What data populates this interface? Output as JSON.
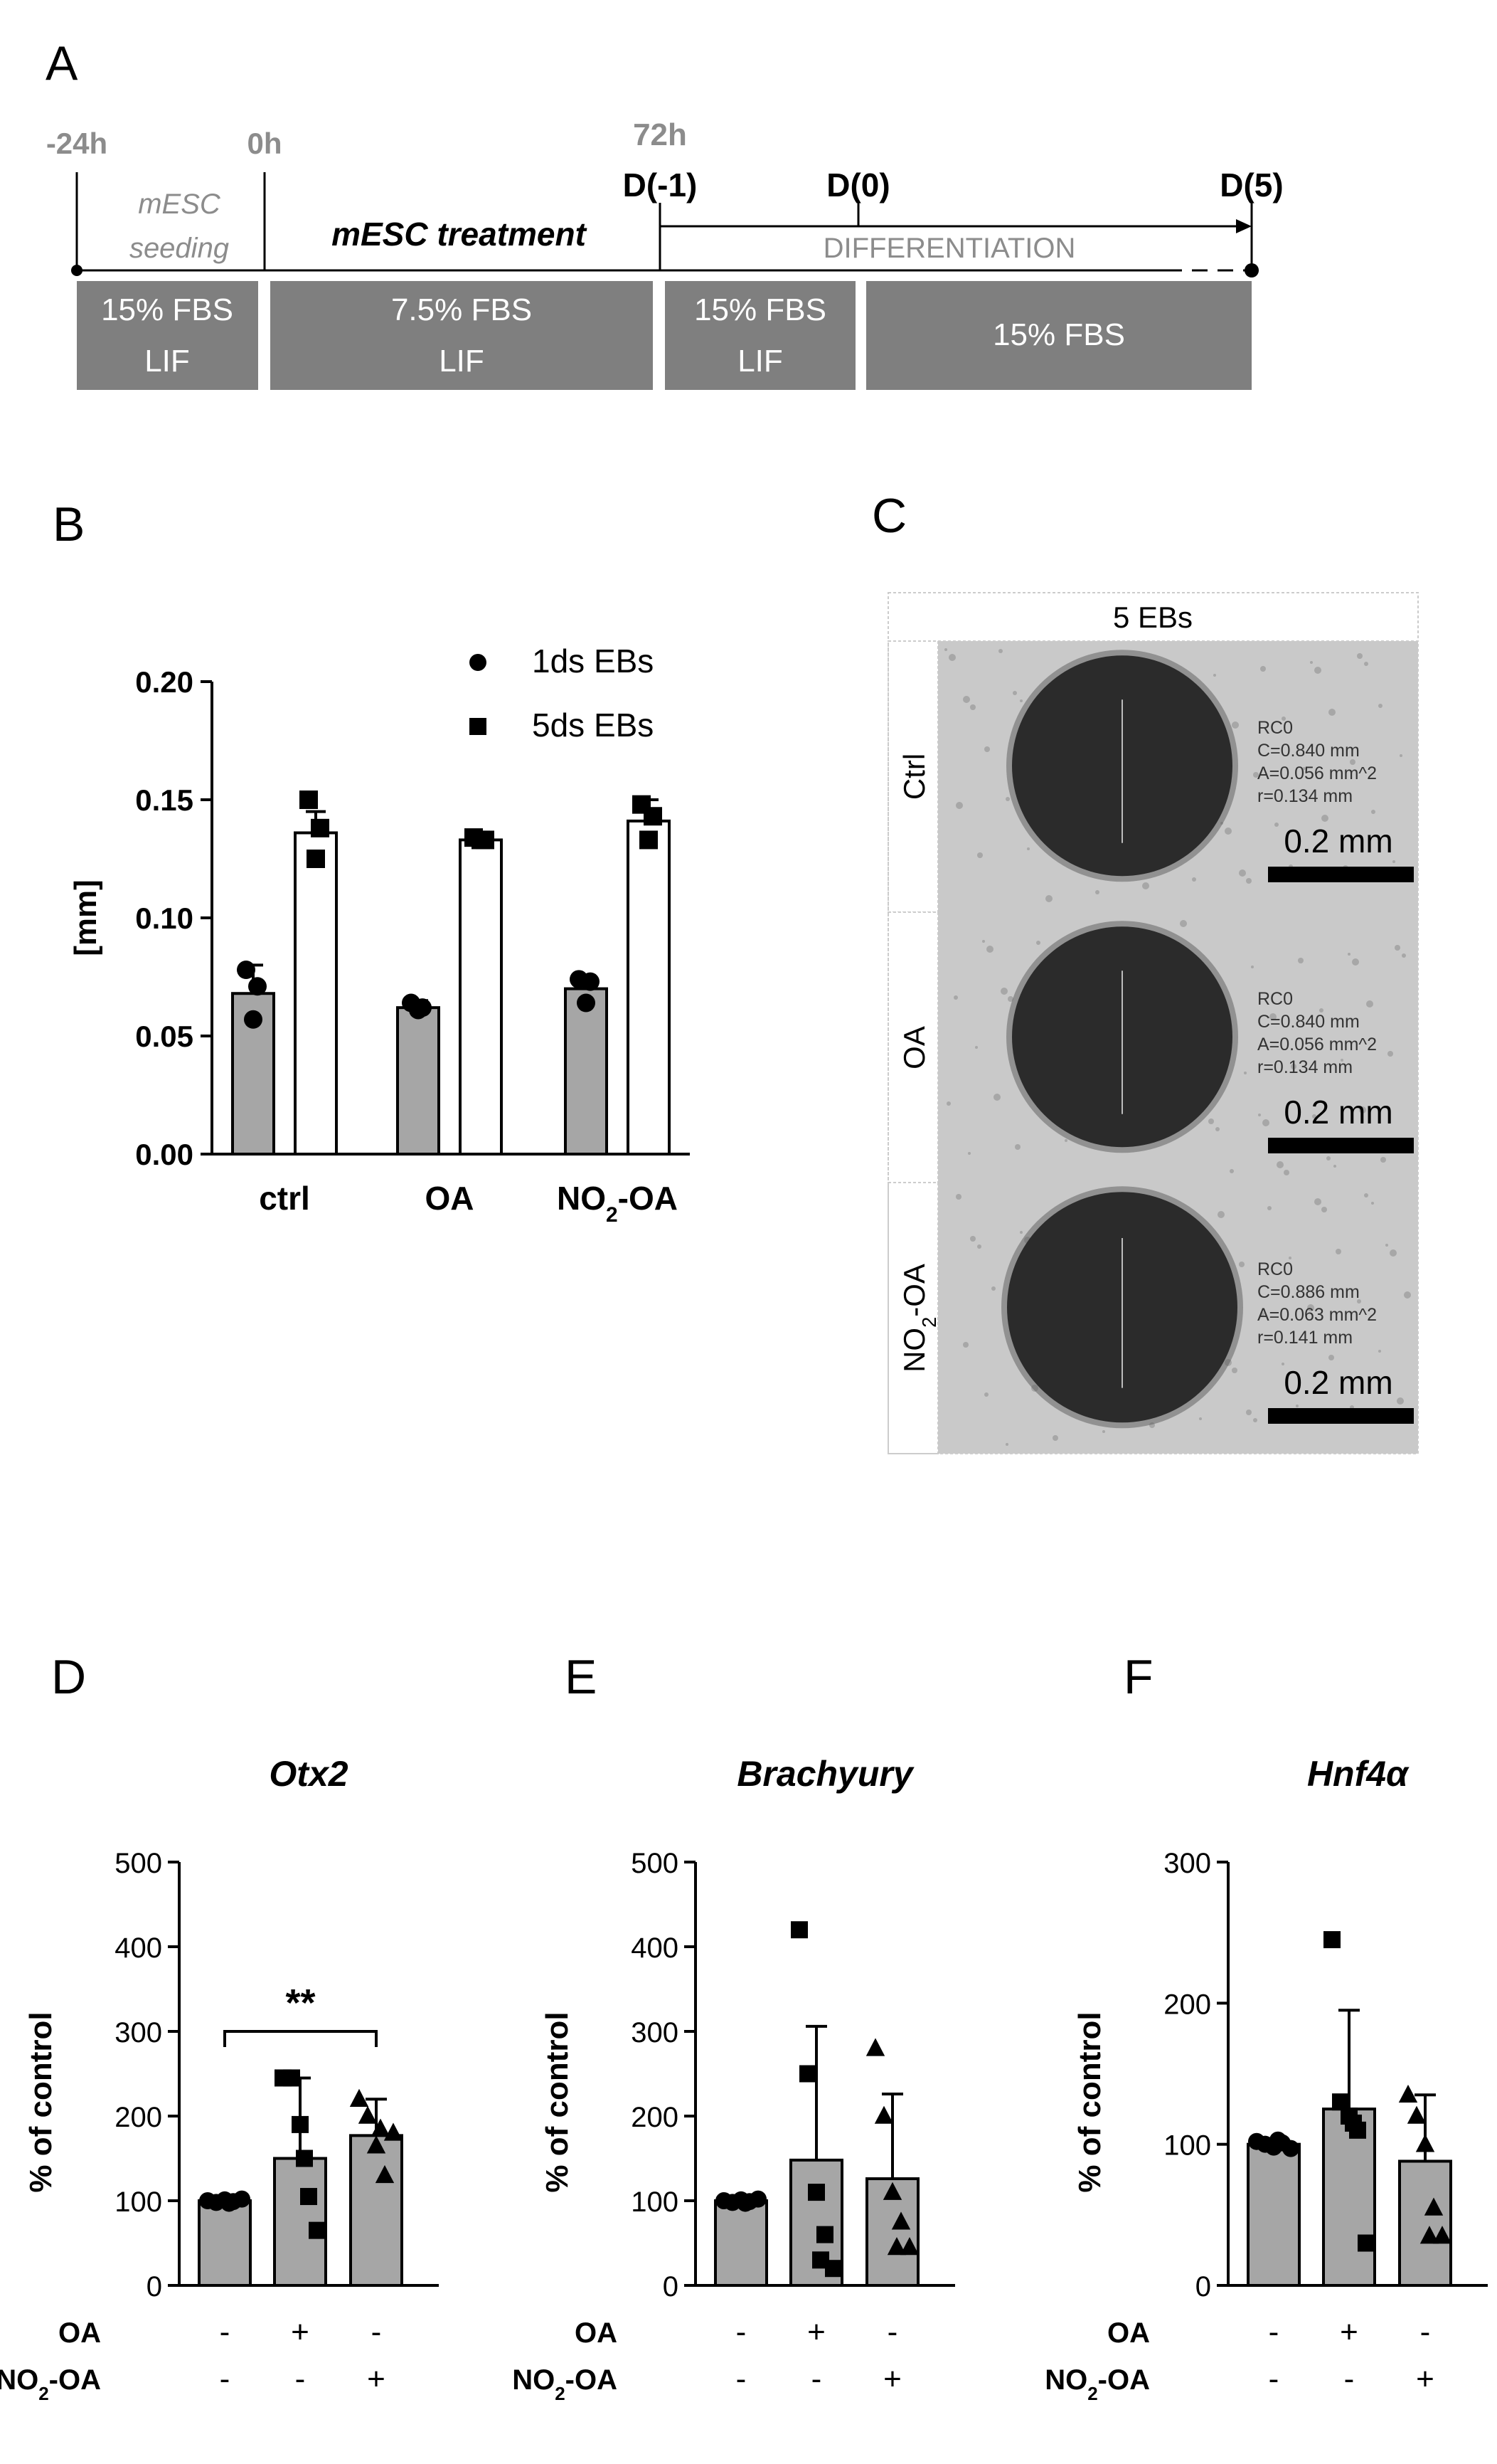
{
  "panels": {
    "A": "A",
    "B": "B",
    "C": "C",
    "D": "D",
    "E": "E",
    "F": "F"
  },
  "timeline": {
    "times": [
      "-24h",
      "0h",
      "72h"
    ],
    "days": [
      "D(-1)",
      "D(0)",
      "D(5)"
    ],
    "seeding": [
      "mESC",
      "seeding"
    ],
    "treatment": "mESC treatment",
    "differentiation": "DIFFERENTIATION",
    "boxes": [
      [
        "15% FBS",
        "LIF"
      ],
      [
        "7.5% FBS",
        "LIF"
      ],
      [
        "15% FBS",
        "LIF"
      ],
      [
        "15% FBS"
      ]
    ]
  },
  "micro": {
    "header": "5 EBs",
    "rows": [
      {
        "label": "Ctrl",
        "meas": [
          "RC0",
          "C=0.840 mm",
          "A=0.056 mm^2",
          "r=0.134 mm"
        ],
        "scale": "0.2 mm"
      },
      {
        "label": "OA",
        "meas": [
          "RC0",
          "C=0.840 mm",
          "A=0.056 mm^2",
          "r=0.134 mm"
        ],
        "scale": "0.2 mm"
      },
      {
        "label": "NO2-OA",
        "meas": [
          "RC0",
          "C=0.886 mm",
          "A=0.063 mm^2",
          "r=0.141 mm"
        ],
        "scale": "0.2 mm"
      }
    ]
  },
  "colors": {
    "bar_gray": "#a6a6a6",
    "box_gray": "#7f7f7f",
    "micro_bg": "#c9c9c9",
    "text_gray": "#8c8c8c"
  },
  "chart_data": [
    {
      "panel": "B",
      "type": "bar",
      "categories": [
        "ctrl",
        "OA",
        "NO2-OA"
      ],
      "ylabel": "[mm]",
      "ylim": [
        0,
        0.2
      ],
      "yticks": [
        "0.00",
        "0.05",
        "0.10",
        "0.15",
        "0.20"
      ],
      "series": [
        {
          "name": "1ds EBs",
          "values": [
            0.068,
            0.062,
            0.07
          ],
          "errors": [
            0.012,
            0.003,
            0.005
          ],
          "fill": "#a6a6a6",
          "points": [
            [
              0.078,
              0.071,
              0.057
            ],
            [
              0.064,
              0.062,
              0.061
            ],
            [
              0.074,
              0.073,
              0.064
            ]
          ]
        },
        {
          "name": "5ds EBs",
          "values": [
            0.136,
            0.133,
            0.141
          ],
          "errors": [
            0.009,
            0.001,
            0.009
          ],
          "fill": "#ffffff",
          "points": [
            [
              0.15,
              0.138,
              0.125
            ],
            [
              0.134,
              0.133,
              0.133
            ],
            [
              0.148,
              0.143,
              0.133
            ]
          ]
        }
      ],
      "legend": "top-right"
    },
    {
      "panel": "D",
      "type": "bar",
      "title": "Otx2",
      "ylabel": "% of control",
      "ylim": [
        0,
        500
      ],
      "yticks": [
        "0",
        "100",
        "200",
        "300",
        "400",
        "500"
      ],
      "values": [
        100,
        150,
        177
      ],
      "errors": [
        4,
        95,
        43
      ],
      "markers": [
        "circle",
        "square",
        "triangle"
      ],
      "points": [
        [
          100,
          98,
          101,
          99,
          102,
          97
        ],
        [
          245,
          245,
          190,
          105,
          65,
          150
        ],
        [
          220,
          200,
          165,
          130,
          180,
          185
        ]
      ],
      "significance": "**",
      "conditions": {
        "OA": [
          "-",
          "+",
          "-"
        ],
        "NO2-OA": [
          "-",
          "-",
          "+"
        ]
      }
    },
    {
      "panel": "E",
      "type": "bar",
      "title": "Brachyury",
      "ylabel": "% of control",
      "ylim": [
        0,
        500
      ],
      "yticks": [
        "0",
        "100",
        "200",
        "300",
        "400",
        "500"
      ],
      "values": [
        100,
        148,
        126
      ],
      "errors": [
        3,
        158,
        100
      ],
      "markers": [
        "circle",
        "square",
        "triangle"
      ],
      "points": [
        [
          100,
          98,
          101,
          99,
          102,
          97
        ],
        [
          420,
          250,
          110,
          60,
          20,
          30
        ],
        [
          280,
          200,
          110,
          75,
          45,
          45
        ]
      ],
      "conditions": {
        "OA": [
          "-",
          "+",
          "-"
        ],
        "NO2-OA": [
          "-",
          "-",
          "+"
        ]
      }
    },
    {
      "panel": "F",
      "type": "bar",
      "title": "Hnf4α",
      "ylabel": "% of control",
      "ylim": [
        0,
        300
      ],
      "yticks": [
        "0",
        "100",
        "200",
        "300"
      ],
      "values": [
        100,
        125,
        88
      ],
      "errors": [
        4,
        70,
        47
      ],
      "markers": [
        "circle",
        "square",
        "triangle"
      ],
      "points": [
        [
          102,
          100,
          98,
          101,
          97,
          103
        ],
        [
          245,
          130,
          120,
          110,
          30,
          115
        ],
        [
          135,
          120,
          100,
          55,
          35,
          35
        ]
      ],
      "conditions": {
        "OA": [
          "-",
          "+",
          "-"
        ],
        "NO2-OA": [
          "-",
          "-",
          "+"
        ]
      }
    }
  ]
}
